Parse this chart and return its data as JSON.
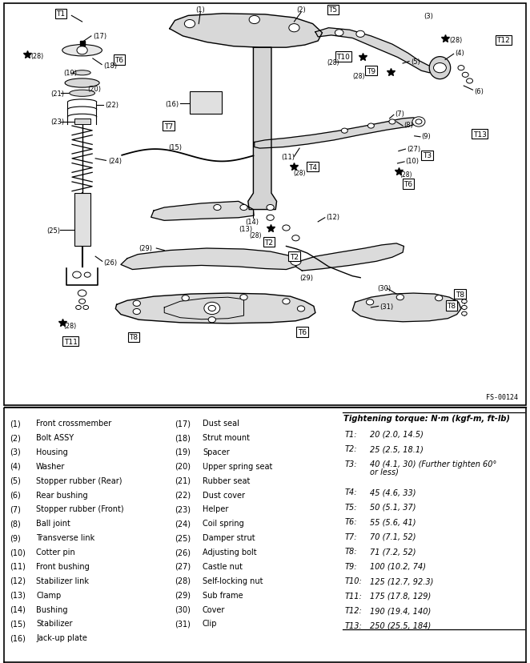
{
  "fig_width": 6.62,
  "fig_height": 8.29,
  "dpi": 100,
  "ref_code": "FS-00124",
  "left_labels": [
    [
      "(1)",
      "Front crossmember"
    ],
    [
      "(2)",
      "Bolt ASSY"
    ],
    [
      "(3)",
      "Housing"
    ],
    [
      "(4)",
      "Washer"
    ],
    [
      "(5)",
      "Stopper rubber (Rear)"
    ],
    [
      "(6)",
      "Rear bushing"
    ],
    [
      "(7)",
      "Stopper rubber (Front)"
    ],
    [
      "(8)",
      "Ball joint"
    ],
    [
      "(9)",
      "Transverse link"
    ],
    [
      "(10)",
      "Cotter pin"
    ],
    [
      "(11)",
      "Front bushing"
    ],
    [
      "(12)",
      "Stabilizer link"
    ],
    [
      "(13)",
      "Clamp"
    ],
    [
      "(14)",
      "Bushing"
    ],
    [
      "(15)",
      "Stabilizer"
    ],
    [
      "(16)",
      "Jack-up plate"
    ]
  ],
  "mid_labels": [
    [
      "(17)",
      "Dust seal"
    ],
    [
      "(18)",
      "Strut mount"
    ],
    [
      "(19)",
      "Spacer"
    ],
    [
      "(20)",
      "Upper spring seat"
    ],
    [
      "(21)",
      "Rubber seat"
    ],
    [
      "(22)",
      "Dust cover"
    ],
    [
      "(23)",
      "Helper"
    ],
    [
      "(24)",
      "Coil spring"
    ],
    [
      "(25)",
      "Damper strut"
    ],
    [
      "(26)",
      "Adjusting bolt"
    ],
    [
      "(27)",
      "Castle nut"
    ],
    [
      "(28)",
      "Self-locking nut"
    ],
    [
      "(29)",
      "Sub frame"
    ],
    [
      "(30)",
      "Cover"
    ],
    [
      "(31)",
      "Clip"
    ]
  ],
  "torque_header": "Tightening torque: N·m (kgf-m, ft-lb)",
  "torque_values": [
    [
      "T1:",
      "20 (2.0, 14.5)"
    ],
    [
      "T2:",
      "25 (2.5, 18.1)"
    ],
    [
      "T3:",
      "40 (4.1, 30) (Further tighten 60°"
    ],
    [
      "",
      "or less)"
    ],
    [
      "T4:",
      "45 (4.6, 33)"
    ],
    [
      "T5:",
      "50 (5.1, 37)"
    ],
    [
      "T6:",
      "55 (5.6, 41)"
    ],
    [
      "T7:",
      "70 (7.1, 52)"
    ],
    [
      "T8:",
      "71 (7.2, 52)"
    ],
    [
      "T9:",
      "100 (10.2, 74)"
    ],
    [
      "T10:",
      "125 (12.7, 92.3)"
    ],
    [
      "T11:",
      "175 (17.8, 129)"
    ],
    [
      "T12:",
      "190 (19.4, 140)"
    ],
    [
      "T13:",
      "250 (25.5, 184)"
    ]
  ],
  "diag_split": 0.615,
  "table_split": 0.385
}
